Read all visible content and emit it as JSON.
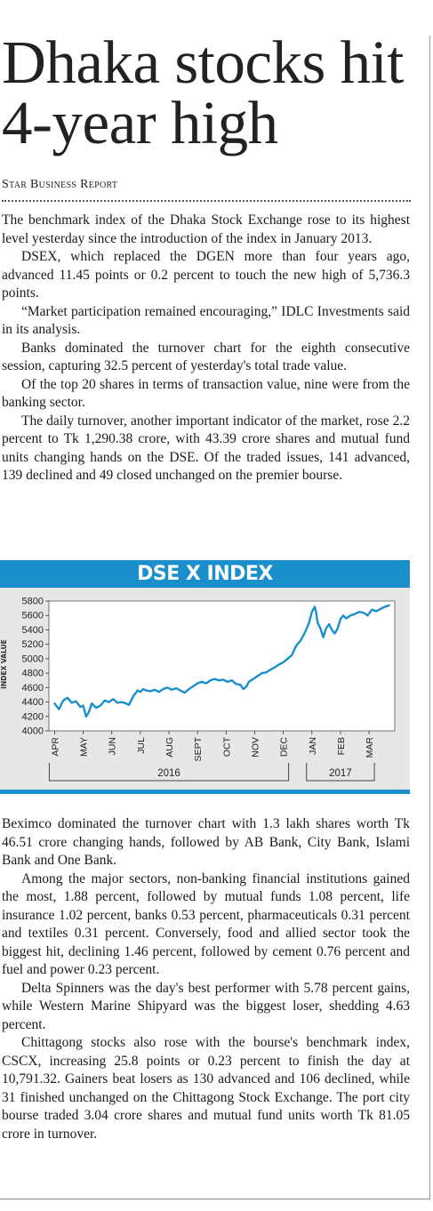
{
  "article": {
    "headline": "Dhaka stocks hit 4-year high",
    "byline": "Star Business Report",
    "paragraphs_top": [
      "The benchmark index of the Dhaka Stock Exchange rose to its highest level yesterday since the introduction of the index in January 2013.",
      "DSEX, which replaced the DGEN more than four years ago, advanced 11.45 points or 0.2 percent to touch the new high of 5,736.3 points.",
      "“Market participation remained encouraging,” IDLC Investments said in its analysis.",
      "Banks dominated the turnover chart for the eighth consecutive session, capturing 32.5 percent of yesterday's total trade value.",
      "Of the top 20 shares in terms of transaction value, nine were from the banking sector.",
      "The daily turnover, another important indicator of the market, rose 2.2 percent to Tk 1,290.38 crore, with 43.39 crore shares and mutual fund units changing hands on the DSE. Of the traded issues, 141 advanced, 139 declined and 49 closed unchanged on the premier bourse."
    ],
    "paragraphs_bottom": [
      "Beximco dominated the turnover chart with 1.3 lakh shares worth Tk 46.51 crore changing hands, followed by AB Bank, City Bank, Islami Bank and One Bank.",
      "Among the major sectors, non-banking financial institutions gained the most, 1.88 percent, followed by mutual funds 1.08 percent, life insurance 1.02 percent, banks 0.53 percent, pharmaceuticals 0.31 percent and textiles 0.31 percent. Conversely, food and allied sector took the biggest hit, declining 1.46 percent, followed by cement 0.76 percent and fuel and power 0.23 percent.",
      "Delta Spinners was the day's best performer with 5.78 percent gains, while Western Marine Shipyard was the biggest loser, shedding 4.63 percent.",
      "Chittagong stocks also rose with the bourse's benchmark index, CSCX, increasing 25.8 points or 0.23 percent to finish the day at 10,791.32. Gainers beat losers as 130 advanced and 106 declined, while 31 finished unchanged on the Chittagong Stock Exchange. The port city bourse traded 3.04 crore shares and mutual fund units worth Tk 81.05 crore in turnover."
    ]
  },
  "colors": {
    "accent": "#1b8fcb",
    "chart_bg": "#e7e7e7",
    "line": "#1b8fcb"
  },
  "chart_data": {
    "type": "line",
    "title": "DSE X INDEX",
    "ylabel": "INDEX VALUE",
    "xlabel": "",
    "ylim": [
      4000,
      5800
    ],
    "yticks": [
      4000,
      4200,
      4400,
      4600,
      4800,
      5000,
      5200,
      5400,
      5600,
      5800
    ],
    "month_labels": [
      "APR",
      "MAY",
      "JUN",
      "JUL",
      "AUG",
      "SEPT",
      "OCT",
      "NOV",
      "DEC",
      "JAN",
      "FEB",
      "MAR"
    ],
    "year_groups": [
      {
        "label": "2016",
        "from_month": 0,
        "to_month": 8
      },
      {
        "label": "2017",
        "from_month": 9,
        "to_month": 11
      }
    ],
    "grid": false,
    "series": [
      {
        "x": [
          0,
          0.15,
          0.3,
          0.45,
          0.6,
          0.75,
          0.9,
          1.0,
          1.1,
          1.2,
          1.3,
          1.45,
          1.6,
          1.75,
          1.9,
          2.05,
          2.2,
          2.35,
          2.5,
          2.6,
          2.75,
          2.9,
          3.0,
          3.1,
          3.2,
          3.35,
          3.5,
          3.65,
          3.8,
          3.95,
          4.1,
          4.25,
          4.4,
          4.55,
          4.7,
          4.85,
          5.0,
          5.15,
          5.3,
          5.45,
          5.6,
          5.75,
          5.9,
          6.05,
          6.2,
          6.35,
          6.5,
          6.6,
          6.7,
          6.8,
          6.95,
          7.1,
          7.25,
          7.4,
          7.55,
          7.7,
          7.85,
          8.0,
          8.15,
          8.3,
          8.45,
          8.6,
          8.7,
          8.8,
          8.9,
          9.0,
          9.1,
          9.15,
          9.2,
          9.3,
          9.4,
          9.5,
          9.6,
          9.7,
          9.8,
          9.9,
          10.0,
          10.1,
          10.2,
          10.35,
          10.5,
          10.65,
          10.8,
          10.95,
          11.1,
          11.25,
          11.4,
          11.55,
          11.7
        ],
        "y": [
          4380,
          4300,
          4420,
          4460,
          4390,
          4410,
          4330,
          4350,
          4200,
          4260,
          4380,
          4320,
          4350,
          4420,
          4400,
          4440,
          4390,
          4400,
          4380,
          4360,
          4480,
          4560,
          4540,
          4580,
          4560,
          4550,
          4570,
          4540,
          4580,
          4600,
          4570,
          4590,
          4560,
          4530,
          4580,
          4620,
          4660,
          4680,
          4660,
          4700,
          4720,
          4700,
          4710,
          4680,
          4700,
          4650,
          4640,
          4580,
          4610,
          4680,
          4720,
          4760,
          4800,
          4810,
          4850,
          4880,
          4920,
          4950,
          5000,
          5050,
          5180,
          5250,
          5320,
          5400,
          5500,
          5650,
          5720,
          5640,
          5500,
          5420,
          5300,
          5420,
          5480,
          5400,
          5350,
          5420,
          5550,
          5600,
          5560,
          5600,
          5620,
          5650,
          5640,
          5600,
          5680,
          5660,
          5690,
          5720,
          5740
        ]
      }
    ]
  }
}
